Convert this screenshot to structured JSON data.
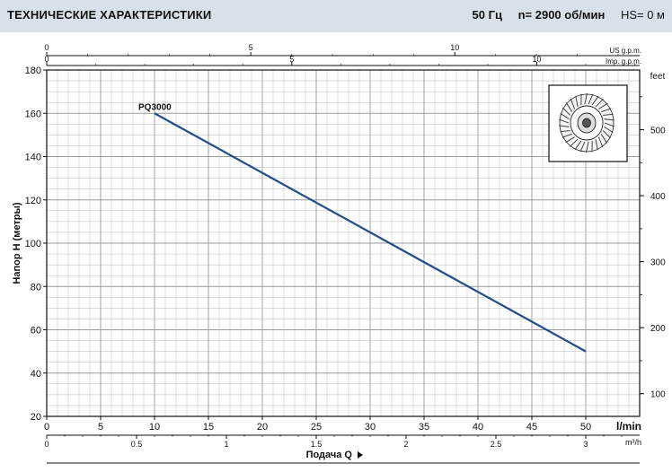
{
  "header": {
    "title": "ТЕХНИЧЕСКИЕ ХАРАКТЕРИСТИКИ",
    "freq": "50 Гц",
    "speed": "n= 2900  об/мин",
    "hs": "HS= 0 м"
  },
  "colors": {
    "header_bg": "#d8e1ea",
    "curve": "#1f4e8a",
    "grid": "#b9b9b9"
  },
  "chart_data": {
    "type": "line",
    "grid": true,
    "series": [
      {
        "name": "PQ3000",
        "x": [
          10,
          50
        ],
        "y": [
          160,
          50
        ]
      }
    ],
    "x_axis": {
      "label": "l/min",
      "range": [
        0,
        50
      ],
      "ticks": [
        "0",
        "5",
        "10",
        "15",
        "20",
        "25",
        "30",
        "35",
        "40",
        "45",
        "50"
      ]
    },
    "y_axis": {
      "label": "Напор H  (метры)",
      "range": [
        20,
        180
      ],
      "ticks": [
        "20",
        "40",
        "60",
        "80",
        "100",
        "120",
        "140",
        "160",
        "180"
      ]
    },
    "y_axis_right": {
      "label": "feet",
      "ticks": [
        "100",
        "200",
        "300",
        "400",
        "500"
      ]
    },
    "top_axis_us": {
      "label": "US g.p.m.",
      "ticks": [
        "0",
        "5",
        "10"
      ]
    },
    "top_axis_imp": {
      "label": "Imp. g.p.m.",
      "ticks": [
        "0",
        "5",
        "10"
      ]
    },
    "bottom_axis_m3h": {
      "label": "m³/h",
      "ticks": [
        "0",
        "0.5",
        "1",
        "1.5",
        "2",
        "2.5",
        "3"
      ]
    },
    "flow_caption": "Подача Q"
  }
}
